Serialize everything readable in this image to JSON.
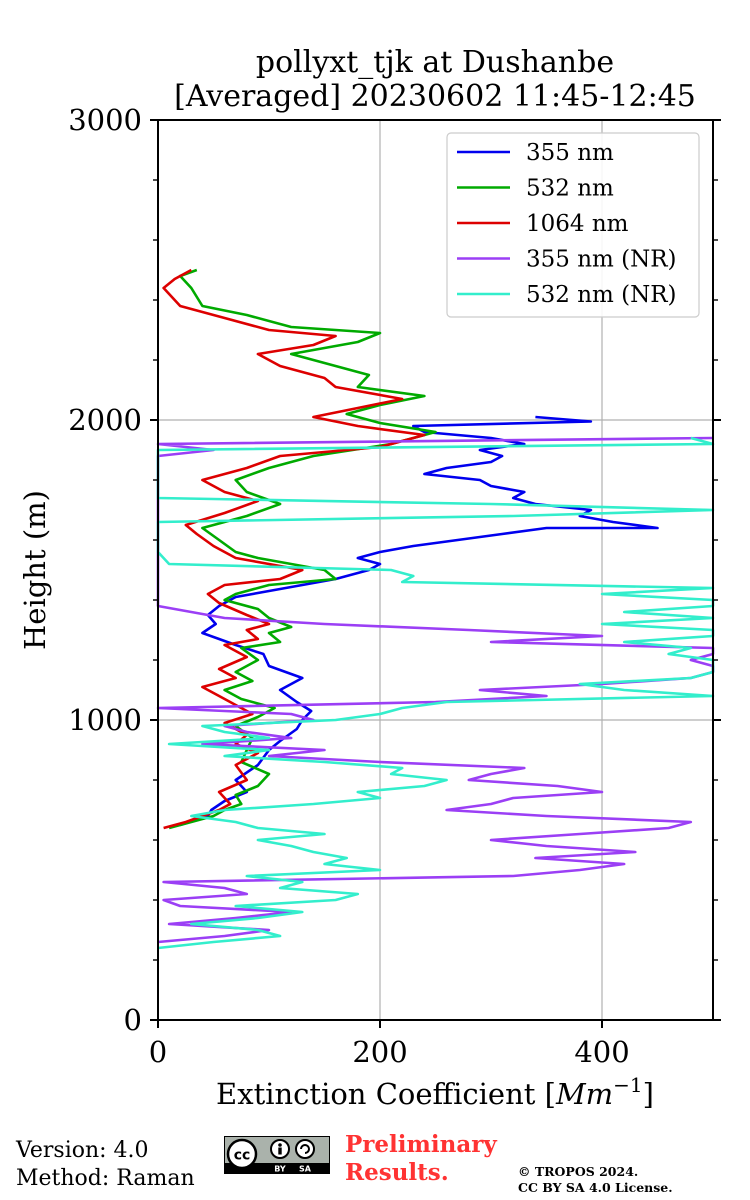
{
  "chart_data": {
    "type": "line",
    "title_line1": "pollyxt_tjk at Dushanbe",
    "title_line2": "[Averaged] 20230602 11:45-12:45",
    "xlabel_prefix": "Extinction Coefficient [",
    "xlabel_unit": "Mm",
    "xlabel_exp": "−1",
    "xlabel_suffix": "]",
    "ylabel": "Height (m)",
    "xlim": [
      0,
      500
    ],
    "ylim": [
      0,
      3000
    ],
    "xticks": [
      0,
      200,
      400
    ],
    "yticks": [
      0,
      1000,
      2000,
      3000
    ],
    "xtick_labels": [
      "0",
      "200",
      "400"
    ],
    "ytick_labels": [
      "0",
      "1000",
      "2000",
      "3000"
    ],
    "grid": true,
    "legend_position": "upper-right",
    "series": [
      {
        "name": "355 nm",
        "color": "#0000ee",
        "points": [
          [
            20,
            650
          ],
          [
            45,
            680
          ],
          [
            48,
            700
          ],
          [
            60,
            730
          ],
          [
            80,
            760
          ],
          [
            70,
            800
          ],
          [
            90,
            850
          ],
          [
            100,
            900
          ],
          [
            110,
            930
          ],
          [
            125,
            970
          ],
          [
            130,
            1000
          ],
          [
            138,
            1030
          ],
          [
            125,
            1060
          ],
          [
            110,
            1100
          ],
          [
            130,
            1140
          ],
          [
            100,
            1180
          ],
          [
            95,
            1220
          ],
          [
            70,
            1250
          ],
          [
            55,
            1270
          ],
          [
            40,
            1290
          ],
          [
            52,
            1320
          ],
          [
            45,
            1350
          ],
          [
            55,
            1380
          ],
          [
            70,
            1410
          ],
          [
            100,
            1430
          ],
          [
            130,
            1450
          ],
          [
            160,
            1470
          ],
          [
            190,
            1500
          ],
          [
            200,
            1520
          ],
          [
            180,
            1540
          ],
          [
            200,
            1560
          ],
          [
            230,
            1580
          ],
          [
            270,
            1600
          ],
          [
            310,
            1620
          ],
          [
            350,
            1640
          ],
          [
            450,
            1640
          ],
          [
            410,
            1660
          ],
          [
            380,
            1680
          ],
          [
            390,
            1700
          ],
          [
            340,
            1720
          ],
          [
            320,
            1740
          ],
          [
            330,
            1760
          ],
          [
            300,
            1780
          ],
          [
            290,
            1800
          ],
          [
            240,
            1820
          ],
          [
            260,
            1840
          ],
          [
            300,
            1860
          ],
          [
            310,
            1880
          ],
          [
            290,
            1900
          ],
          [
            330,
            1920
          ],
          [
            300,
            1940
          ],
          [
            240,
            1960
          ],
          [
            230,
            1980
          ],
          [
            390,
            1995
          ],
          [
            340,
            2010
          ]
        ]
      },
      {
        "name": "532 nm",
        "color": "#00aa00",
        "points": [
          [
            10,
            640
          ],
          [
            30,
            660
          ],
          [
            50,
            680
          ],
          [
            60,
            700
          ],
          [
            75,
            720
          ],
          [
            70,
            750
          ],
          [
            90,
            780
          ],
          [
            100,
            820
          ],
          [
            75,
            860
          ],
          [
            80,
            900
          ],
          [
            85,
            940
          ],
          [
            70,
            980
          ],
          [
            90,
            1010
          ],
          [
            105,
            1040
          ],
          [
            75,
            1070
          ],
          [
            60,
            1100
          ],
          [
            85,
            1130
          ],
          [
            70,
            1160
          ],
          [
            90,
            1200
          ],
          [
            75,
            1240
          ],
          [
            110,
            1260
          ],
          [
            100,
            1290
          ],
          [
            120,
            1310
          ],
          [
            100,
            1340
          ],
          [
            90,
            1370
          ],
          [
            60,
            1400
          ],
          [
            70,
            1420
          ],
          [
            100,
            1450
          ],
          [
            160,
            1470
          ],
          [
            150,
            1500
          ],
          [
            120,
            1520
          ],
          [
            90,
            1540
          ],
          [
            70,
            1560
          ],
          [
            55,
            1600
          ],
          [
            40,
            1640
          ],
          [
            80,
            1680
          ],
          [
            110,
            1720
          ],
          [
            80,
            1760
          ],
          [
            70,
            1800
          ],
          [
            100,
            1840
          ],
          [
            140,
            1880
          ],
          [
            210,
            1920
          ],
          [
            250,
            1960
          ],
          [
            200,
            1990
          ],
          [
            170,
            2020
          ],
          [
            200,
            2050
          ],
          [
            240,
            2080
          ],
          [
            180,
            2110
          ],
          [
            190,
            2150
          ],
          [
            150,
            2190
          ],
          [
            120,
            2220
          ],
          [
            180,
            2260
          ],
          [
            200,
            2290
          ],
          [
            120,
            2310
          ],
          [
            80,
            2350
          ],
          [
            40,
            2380
          ],
          [
            30,
            2440
          ],
          [
            20,
            2480
          ],
          [
            35,
            2500
          ]
        ]
      },
      {
        "name": "1064 nm",
        "color": "#dd0000",
        "points": [
          [
            5,
            640
          ],
          [
            25,
            660
          ],
          [
            40,
            680
          ],
          [
            55,
            700
          ],
          [
            65,
            720
          ],
          [
            55,
            760
          ],
          [
            80,
            800
          ],
          [
            70,
            850
          ],
          [
            90,
            890
          ],
          [
            70,
            920
          ],
          [
            80,
            950
          ],
          [
            60,
            990
          ],
          [
            85,
            1020
          ],
          [
            70,
            1050
          ],
          [
            55,
            1080
          ],
          [
            40,
            1110
          ],
          [
            70,
            1140
          ],
          [
            55,
            1170
          ],
          [
            80,
            1210
          ],
          [
            60,
            1250
          ],
          [
            90,
            1270
          ],
          [
            80,
            1300
          ],
          [
            100,
            1320
          ],
          [
            80,
            1350
          ],
          [
            55,
            1390
          ],
          [
            45,
            1420
          ],
          [
            60,
            1450
          ],
          [
            110,
            1470
          ],
          [
            130,
            1500
          ],
          [
            100,
            1520
          ],
          [
            70,
            1540
          ],
          [
            50,
            1580
          ],
          [
            35,
            1620
          ],
          [
            25,
            1650
          ],
          [
            60,
            1690
          ],
          [
            90,
            1730
          ],
          [
            60,
            1760
          ],
          [
            40,
            1800
          ],
          [
            80,
            1840
          ],
          [
            110,
            1880
          ],
          [
            200,
            1910
          ],
          [
            240,
            1950
          ],
          [
            180,
            1980
          ],
          [
            140,
            2010
          ],
          [
            180,
            2040
          ],
          [
            220,
            2070
          ],
          [
            160,
            2110
          ],
          [
            150,
            2140
          ],
          [
            110,
            2180
          ],
          [
            90,
            2220
          ],
          [
            140,
            2250
          ],
          [
            160,
            2280
          ],
          [
            100,
            2300
          ],
          [
            60,
            2340
          ],
          [
            20,
            2380
          ],
          [
            5,
            2440
          ],
          [
            15,
            2470
          ],
          [
            30,
            2500
          ]
        ]
      },
      {
        "name": "355 nm (NR)",
        "color": "#9b3ff5",
        "points": [
          [
            0,
            260
          ],
          [
            60,
            280
          ],
          [
            100,
            300
          ],
          [
            10,
            320
          ],
          [
            70,
            340
          ],
          [
            120,
            360
          ],
          [
            20,
            380
          ],
          [
            5,
            400
          ],
          [
            80,
            420
          ],
          [
            60,
            440
          ],
          [
            5,
            460
          ],
          [
            320,
            480
          ],
          [
            380,
            500
          ],
          [
            420,
            520
          ],
          [
            340,
            540
          ],
          [
            430,
            560
          ],
          [
            350,
            580
          ],
          [
            300,
            600
          ],
          [
            380,
            620
          ],
          [
            460,
            640
          ],
          [
            480,
            660
          ],
          [
            350,
            680
          ],
          [
            260,
            700
          ],
          [
            300,
            720
          ],
          [
            320,
            740
          ],
          [
            400,
            760
          ],
          [
            360,
            780
          ],
          [
            280,
            800
          ],
          [
            300,
            820
          ],
          [
            330,
            840
          ],
          [
            200,
            860
          ],
          [
            100,
            880
          ],
          [
            150,
            900
          ],
          [
            40,
            920
          ],
          [
            120,
            940
          ],
          [
            80,
            960
          ],
          [
            60,
            980
          ],
          [
            140,
            1000
          ],
          [
            120,
            1020
          ],
          [
            0,
            1040
          ],
          [
            250,
            1060
          ],
          [
            350,
            1080
          ],
          [
            290,
            1100
          ],
          [
            400,
            1120
          ],
          [
            480,
            1140
          ],
          [
            500,
            1160
          ],
          [
            500,
            1180
          ],
          [
            480,
            1200
          ],
          [
            500,
            1220
          ],
          [
            500,
            1240
          ],
          [
            300,
            1260
          ],
          [
            400,
            1280
          ],
          [
            280,
            1300
          ],
          [
            150,
            1320
          ],
          [
            60,
            1340
          ],
          [
            0,
            1380
          ],
          [
            0,
            1880
          ],
          [
            50,
            1900
          ],
          [
            0,
            1920
          ],
          [
            500,
            1940
          ]
        ]
      },
      {
        "name": "532 nm (NR)",
        "color": "#33eecc",
        "points": [
          [
            0,
            240
          ],
          [
            50,
            260
          ],
          [
            110,
            280
          ],
          [
            90,
            300
          ],
          [
            30,
            320
          ],
          [
            90,
            340
          ],
          [
            130,
            360
          ],
          [
            70,
            380
          ],
          [
            160,
            400
          ],
          [
            180,
            420
          ],
          [
            110,
            440
          ],
          [
            130,
            460
          ],
          [
            80,
            480
          ],
          [
            200,
            500
          ],
          [
            150,
            520
          ],
          [
            170,
            540
          ],
          [
            140,
            560
          ],
          [
            120,
            580
          ],
          [
            90,
            600
          ],
          [
            150,
            620
          ],
          [
            90,
            640
          ],
          [
            70,
            660
          ],
          [
            30,
            680
          ],
          [
            60,
            700
          ],
          [
            140,
            720
          ],
          [
            200,
            740
          ],
          [
            180,
            760
          ],
          [
            240,
            780
          ],
          [
            260,
            800
          ],
          [
            210,
            820
          ],
          [
            220,
            840
          ],
          [
            150,
            860
          ],
          [
            60,
            880
          ],
          [
            100,
            900
          ],
          [
            10,
            920
          ],
          [
            100,
            940
          ],
          [
            60,
            960
          ],
          [
            40,
            980
          ],
          [
            160,
            1000
          ],
          [
            200,
            1020
          ],
          [
            220,
            1040
          ],
          [
            260,
            1060
          ],
          [
            500,
            1080
          ],
          [
            420,
            1100
          ],
          [
            380,
            1120
          ],
          [
            480,
            1140
          ],
          [
            500,
            1160
          ],
          [
            500,
            1180
          ],
          [
            500,
            1200
          ],
          [
            460,
            1220
          ],
          [
            480,
            1240
          ],
          [
            420,
            1260
          ],
          [
            500,
            1280
          ],
          [
            500,
            1300
          ],
          [
            400,
            1320
          ],
          [
            500,
            1340
          ],
          [
            420,
            1360
          ],
          [
            500,
            1380
          ],
          [
            500,
            1400
          ],
          [
            400,
            1420
          ],
          [
            500,
            1440
          ],
          [
            220,
            1460
          ],
          [
            230,
            1480
          ],
          [
            210,
            1500
          ],
          [
            10,
            1520
          ],
          [
            0,
            1560
          ],
          [
            0,
            1660
          ],
          [
            320,
            1680
          ],
          [
            500,
            1700
          ],
          [
            300,
            1720
          ],
          [
            0,
            1740
          ],
          [
            0,
            1900
          ],
          [
            500,
            1920
          ],
          [
            480,
            1940
          ]
        ]
      }
    ]
  },
  "footer": {
    "version": "Version: 4.0",
    "method": "Method: Raman",
    "preliminary_line1": "Preliminary",
    "preliminary_line2": "Results.",
    "copyright_line1": "© TROPOS 2024.",
    "copyright_line2": "CC BY SA 4.0 License.",
    "cc_text": "cc",
    "cc_by": "BY",
    "cc_sa": "SA"
  }
}
